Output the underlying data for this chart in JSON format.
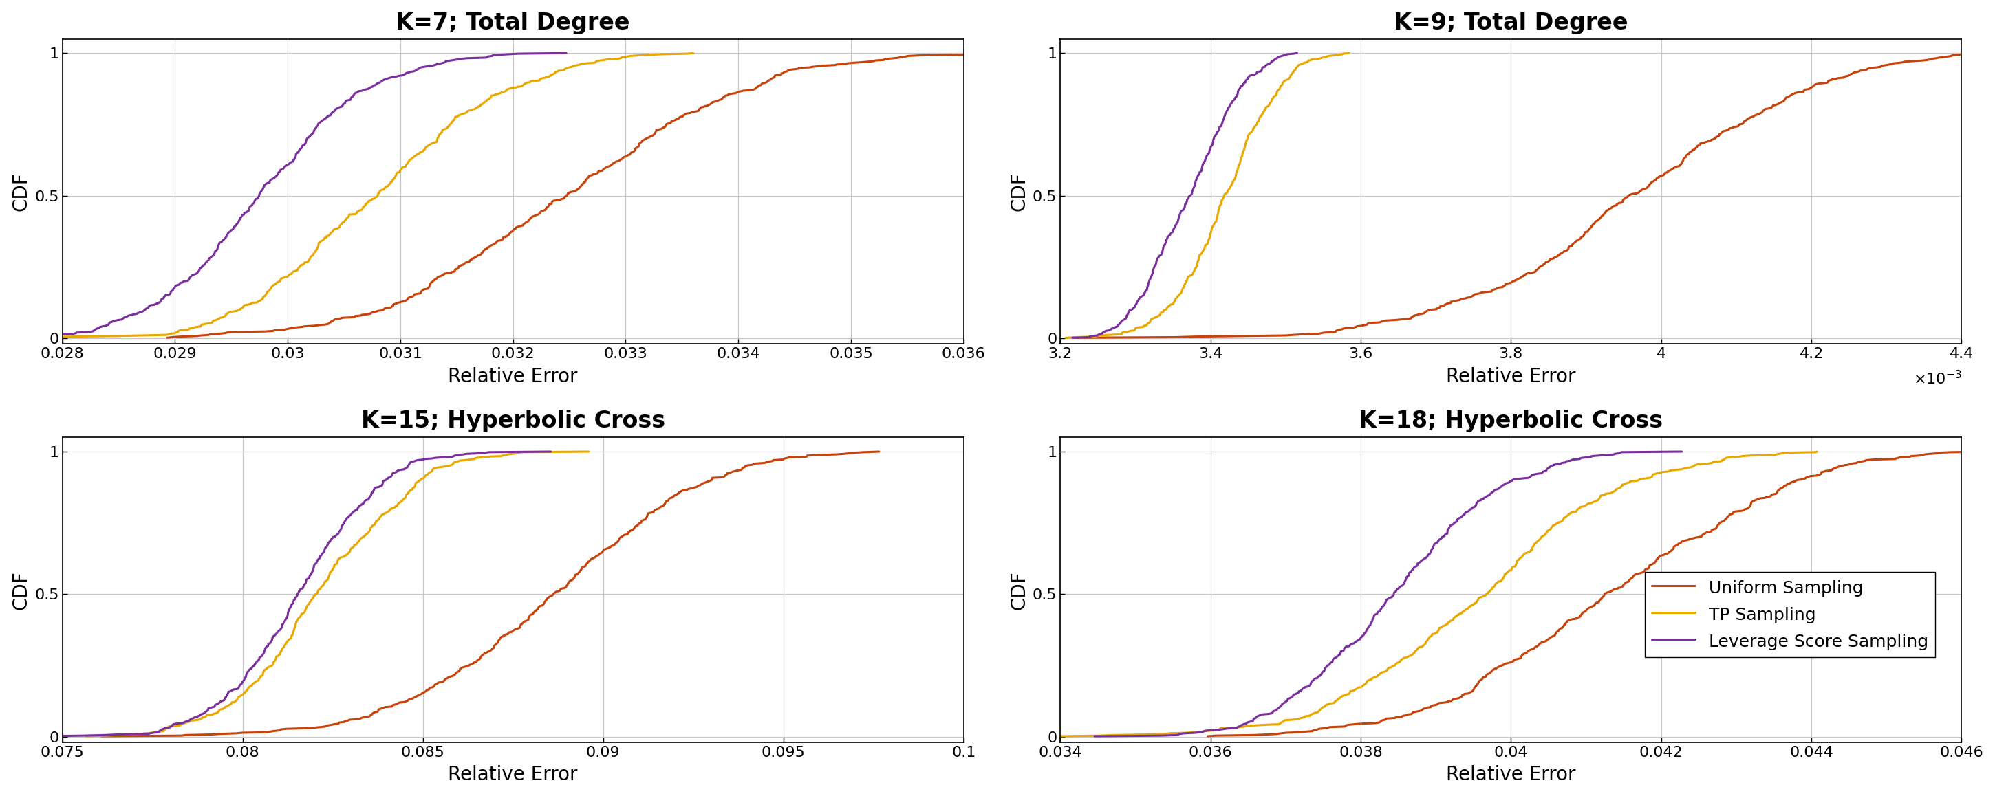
{
  "subplots": [
    {
      "title": "K=7; Total Degree",
      "xlabel": "Relative Error",
      "ylabel": "CDF",
      "xlim": [
        0.028,
        0.036
      ],
      "ylim": [
        -0.02,
        1.05
      ],
      "xticks": [
        0.028,
        0.029,
        0.03,
        0.031,
        0.032,
        0.033,
        0.034,
        0.035,
        0.036
      ],
      "xticklabels": [
        "0.028",
        "0.029",
        "0.03",
        "0.031",
        "0.032",
        "0.033",
        "0.034",
        "0.035",
        "0.036"
      ],
      "use_sci": false,
      "uniform": {
        "mu": 0.0325,
        "sigma": 0.00135
      },
      "tp": {
        "mu": 0.0308,
        "sigma": 0.00105
      },
      "leverage": {
        "mu": 0.0298,
        "sigma": 0.00082
      }
    },
    {
      "title": "K=9; Total Degree",
      "xlabel": "Relative Error",
      "ylabel": "CDF",
      "xlim": [
        0.0032,
        0.0044
      ],
      "ylim": [
        -0.02,
        1.05
      ],
      "xticks": [
        0.0032,
        0.0034,
        0.0036,
        0.0038,
        0.004,
        0.0042,
        0.0044
      ],
      "xticklabels": [
        "3.2",
        "3.4",
        "3.6",
        "3.8",
        "4",
        "4.2",
        "4.4"
      ],
      "use_sci": true,
      "uniform": {
        "mu": 0.00395,
        "sigma": 0.000195
      },
      "tp": {
        "mu": 0.00342,
        "sigma": 6.2e-05
      },
      "leverage": {
        "mu": 0.00337,
        "sigma": 5.8e-05
      }
    },
    {
      "title": "K=15; Hyperbolic Cross",
      "xlabel": "Relative Error",
      "ylabel": "CDF",
      "xlim": [
        0.075,
        0.1
      ],
      "ylim": [
        -0.02,
        1.05
      ],
      "xticks": [
        0.075,
        0.08,
        0.085,
        0.09,
        0.095,
        0.1
      ],
      "xticklabels": [
        "0.075",
        "0.08",
        "0.085",
        "0.09",
        "0.095",
        "0.1"
      ],
      "use_sci": false,
      "uniform": {
        "mu": 0.0885,
        "sigma": 0.0035
      },
      "tp": {
        "mu": 0.0822,
        "sigma": 0.0022
      },
      "leverage": {
        "mu": 0.0815,
        "sigma": 0.002
      }
    },
    {
      "title": "K=18; Hyperbolic Cross",
      "xlabel": "Relative Error",
      "ylabel": "CDF",
      "xlim": [
        0.034,
        0.046
      ],
      "ylim": [
        -0.02,
        1.05
      ],
      "xticks": [
        0.034,
        0.036,
        0.038,
        0.04,
        0.042,
        0.044,
        0.046
      ],
      "xticklabels": [
        "0.034",
        "0.036",
        "0.038",
        "0.04",
        "0.042",
        "0.044",
        "0.046"
      ],
      "use_sci": false,
      "uniform": {
        "mu": 0.0415,
        "sigma": 0.00195
      },
      "tp": {
        "mu": 0.0395,
        "sigma": 0.00165
      },
      "leverage": {
        "mu": 0.0385,
        "sigma": 0.0013
      }
    }
  ],
  "colors": {
    "uniform": "#C8420A",
    "tp": "#E8A800",
    "leverage": "#7B2F9E"
  },
  "legend_labels": {
    "uniform": "Uniform Sampling",
    "tp": "TP Sampling",
    "leverage": "Leverage Score Sampling"
  },
  "line_width": 2.2,
  "n_samples": 500,
  "background_color": "#ffffff",
  "grid_color": "#c8c8c8"
}
